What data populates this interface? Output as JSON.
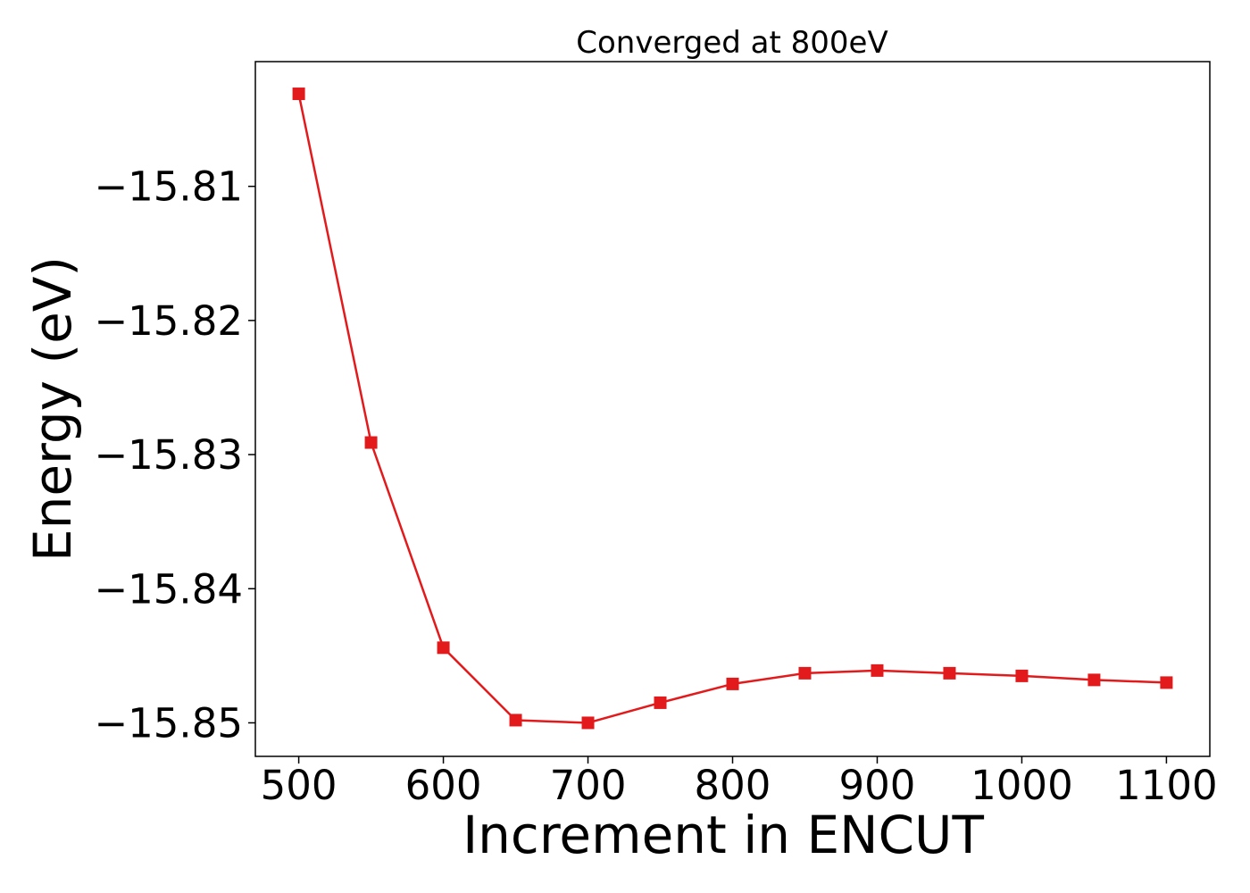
{
  "chart_data": {
    "type": "line",
    "title": "Converged at 800eV",
    "xlabel": "Increment in ENCUT",
    "ylabel": "Energy (eV)",
    "xlim": [
      470,
      1130
    ],
    "ylim": [
      -15.8525,
      -15.8007
    ],
    "xticks": [
      500,
      600,
      700,
      800,
      900,
      1000,
      1100
    ],
    "xtick_labels": [
      "500",
      "600",
      "700",
      "800",
      "900",
      "1000",
      "1100"
    ],
    "yticks": [
      -15.81,
      -15.82,
      -15.83,
      -15.84,
      -15.85
    ],
    "ytick_labels": [
      "−15.81",
      "−15.82",
      "−15.83",
      "−15.84",
      "−15.85"
    ],
    "grid": false,
    "marker": "square",
    "series": [
      {
        "color": "#e31a1c",
        "x": [
          500,
          550,
          600,
          650,
          700,
          750,
          800,
          850,
          900,
          950,
          1000,
          1050,
          1100
        ],
        "y": [
          -15.8031,
          -15.8291,
          -15.8444,
          -15.8498,
          -15.85,
          -15.8485,
          -15.8471,
          -15.8463,
          -15.8461,
          -15.8463,
          -15.8465,
          -15.8468,
          -15.847
        ]
      }
    ]
  }
}
